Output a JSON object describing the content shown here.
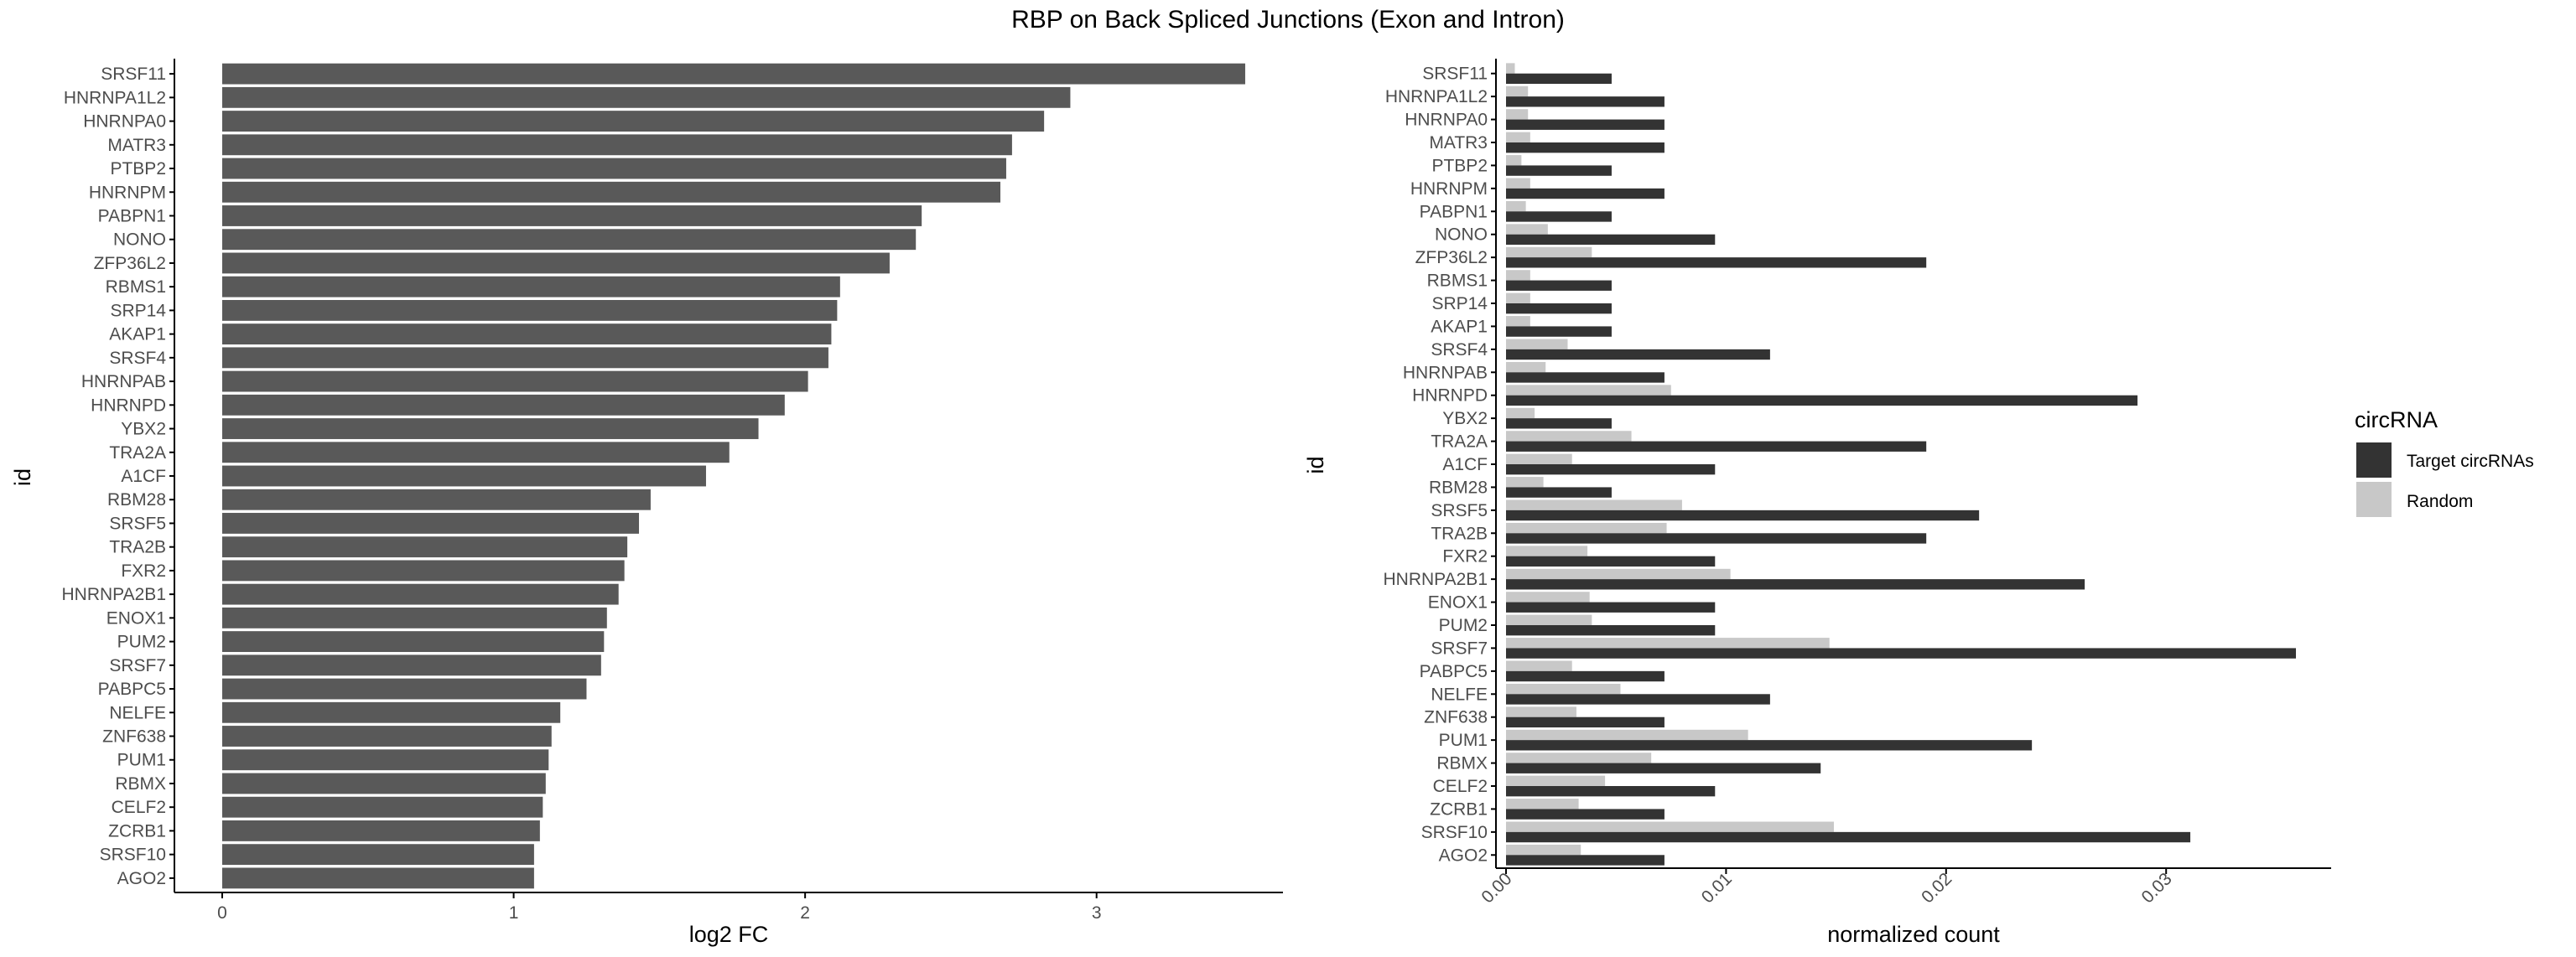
{
  "title": "RBP on Back Spliced Junctions (Exon and Intron)",
  "colors": {
    "left_bar": "#595959",
    "target": "#333333",
    "random": "#c8c8c8",
    "axis": "#000000",
    "tick_text": "#4d4d4d"
  },
  "chart_data": [
    {
      "type": "bar",
      "orientation": "horizontal",
      "xlabel": "log2 FC",
      "ylabel": "id",
      "xlim": [
        0,
        3.7
      ],
      "xticks": [
        "0",
        "1",
        "2",
        "3"
      ],
      "grid": false,
      "categories": [
        "SRSF11",
        "HNRNPA1L2",
        "HNRNPA0",
        "MATR3",
        "PTBP2",
        "HNRNPM",
        "PABPN1",
        "NONO",
        "ZFP36L2",
        "RBMS1",
        "SRP14",
        "AKAP1",
        "SRSF4",
        "HNRNPAB",
        "HNRNPD",
        "YBX2",
        "TRA2A",
        "A1CF",
        "RBM28",
        "SRSF5",
        "TRA2B",
        "FXR2",
        "HNRNPA2B1",
        "ENOX1",
        "PUM2",
        "SRSF7",
        "PABPC5",
        "NELFE",
        "ZNF638",
        "PUM1",
        "RBMX",
        "CELF2",
        "ZCRB1",
        "SRSF10",
        "AGO2"
      ],
      "values": [
        3.51,
        2.91,
        2.82,
        2.71,
        2.69,
        2.67,
        2.4,
        2.38,
        2.29,
        2.12,
        2.11,
        2.09,
        2.08,
        2.01,
        1.93,
        1.84,
        1.74,
        1.66,
        1.47,
        1.43,
        1.39,
        1.38,
        1.36,
        1.32,
        1.31,
        1.3,
        1.25,
        1.16,
        1.13,
        1.12,
        1.11,
        1.1,
        1.09,
        1.07,
        1.07
      ]
    },
    {
      "type": "bar",
      "orientation": "horizontal",
      "grouped": true,
      "xlabel": "normalized count",
      "ylabel": "id",
      "xlim": [
        0,
        0.0375
      ],
      "xticks": [
        "0.00",
        "0.01",
        "0.02",
        "0.03"
      ],
      "grid": false,
      "legend_title": "circRNA",
      "legend_position": "right",
      "categories": [
        "SRSF11",
        "HNRNPA1L2",
        "HNRNPA0",
        "MATR3",
        "PTBP2",
        "HNRNPM",
        "PABPN1",
        "NONO",
        "ZFP36L2",
        "RBMS1",
        "SRP14",
        "AKAP1",
        "SRSF4",
        "HNRNPAB",
        "HNRNPD",
        "YBX2",
        "TRA2A",
        "A1CF",
        "RBM28",
        "SRSF5",
        "TRA2B",
        "FXR2",
        "HNRNPA2B1",
        "ENOX1",
        "PUM2",
        "SRSF7",
        "PABPC5",
        "NELFE",
        "ZNF638",
        "PUM1",
        "RBMX",
        "CELF2",
        "ZCRB1",
        "SRSF10",
        "AGO2"
      ],
      "series": [
        {
          "name": "Target circRNAs",
          "color": "#333333",
          "values": [
            0.0048,
            0.0072,
            0.0072,
            0.0072,
            0.0048,
            0.0072,
            0.0048,
            0.0095,
            0.0191,
            0.0048,
            0.0048,
            0.0048,
            0.012,
            0.0072,
            0.0287,
            0.0048,
            0.0191,
            0.0095,
            0.0048,
            0.0215,
            0.0191,
            0.0095,
            0.0263,
            0.0095,
            0.0095,
            0.0359,
            0.0072,
            0.012,
            0.0072,
            0.0239,
            0.0143,
            0.0095,
            0.0072,
            0.0311,
            0.0072
          ]
        },
        {
          "name": "Random",
          "color": "#c8c8c8",
          "values": [
            0.0004,
            0.001,
            0.001,
            0.0011,
            0.0007,
            0.0011,
            0.0009,
            0.0019,
            0.0039,
            0.0011,
            0.0011,
            0.0011,
            0.0028,
            0.0018,
            0.0075,
            0.0013,
            0.0057,
            0.003,
            0.0017,
            0.008,
            0.0073,
            0.0037,
            0.0102,
            0.0038,
            0.0039,
            0.0147,
            0.003,
            0.0052,
            0.0032,
            0.011,
            0.0066,
            0.0045,
            0.0033,
            0.0149,
            0.0034
          ]
        }
      ]
    }
  ]
}
